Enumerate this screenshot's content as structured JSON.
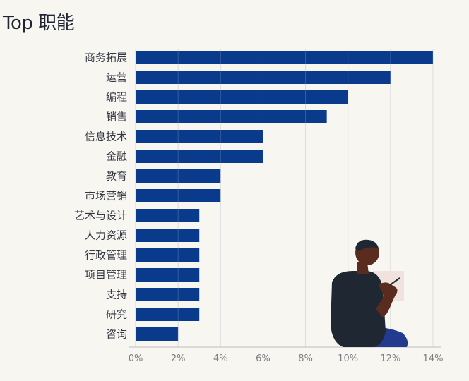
{
  "chart_data": {
    "type": "bar",
    "orientation": "horizontal",
    "title": "Top 职能",
    "categories": [
      "商务拓展",
      "运营",
      "编程",
      "销售",
      "信息技术",
      "金融",
      "教育",
      "市场营销",
      "艺术与设计",
      "人力资源",
      "行政管理",
      "项目管理",
      "支持",
      "研究",
      "咨询"
    ],
    "values": [
      14,
      12,
      10,
      9,
      6,
      6,
      4,
      4,
      3,
      3,
      3,
      3,
      3,
      3,
      2
    ],
    "value_unit": "%",
    "xlim": [
      0,
      14
    ],
    "xticks": [
      "0%",
      "2%",
      "4%",
      "6%",
      "8%",
      "10%",
      "12%",
      "14%"
    ],
    "xtick_values": [
      0,
      2,
      4,
      6,
      8,
      10,
      12,
      14
    ],
    "grid": true,
    "legend": "none",
    "colors": {
      "bar": "#0a3a8c",
      "grid": "#d6d6d6",
      "background": "#f8f6f1"
    }
  },
  "illustration": {
    "description_icon": "person-writing-illustration",
    "colors": {
      "skin": "#5a2c1f",
      "shirt": "#1f2733",
      "pants": "#233b8e",
      "paper": "#f0e2dd"
    }
  }
}
